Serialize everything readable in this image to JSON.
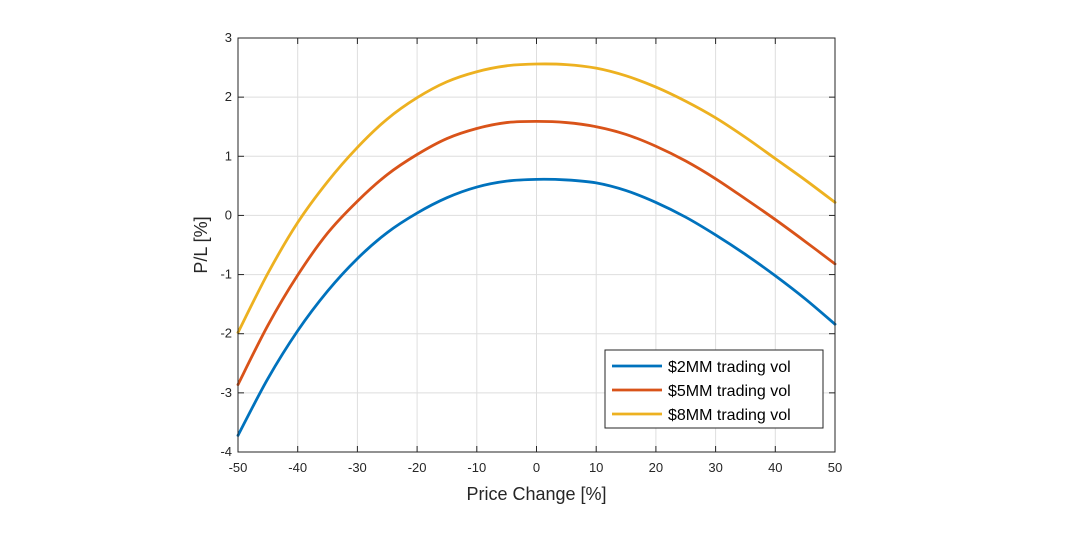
{
  "chart_data": {
    "type": "line",
    "title": "",
    "xlabel": "Price Change [%]",
    "ylabel": "P/L [%]",
    "xlim": [
      -50,
      50
    ],
    "ylim": [
      -4,
      3
    ],
    "xticks": [
      -50,
      -40,
      -30,
      -20,
      -10,
      0,
      10,
      20,
      30,
      40,
      50
    ],
    "yticks": [
      -4,
      -3,
      -2,
      -1,
      0,
      1,
      2,
      3
    ],
    "xtick_labels": [
      "-50",
      "-40",
      "-30",
      "-20",
      "-10",
      "0",
      "10",
      "20",
      "30",
      "40",
      "50"
    ],
    "ytick_labels": [
      "-4",
      "-3",
      "-2",
      "-1",
      "0",
      "1",
      "2",
      "3"
    ],
    "grid": true,
    "legend_position": "bottom-right",
    "x": [
      -50,
      -45,
      -40,
      -35,
      -30,
      -25,
      -20,
      -15,
      -10,
      -5,
      0,
      5,
      10,
      15,
      20,
      25,
      30,
      35,
      40,
      45,
      50
    ],
    "series": [
      {
        "name": "$2MM trading vol",
        "color": "#0072BD",
        "values": [
          -3.72,
          -2.76,
          -1.95,
          -1.28,
          -0.73,
          -0.29,
          0.04,
          0.3,
          0.48,
          0.58,
          0.61,
          0.6,
          0.55,
          0.42,
          0.22,
          -0.03,
          -0.33,
          -0.66,
          -1.02,
          -1.41,
          -1.84
        ]
      },
      {
        "name": "$5MM trading vol",
        "color": "#D95319",
        "values": [
          -2.86,
          -1.86,
          -1.01,
          -0.3,
          0.24,
          0.69,
          1.03,
          1.3,
          1.47,
          1.57,
          1.59,
          1.57,
          1.5,
          1.37,
          1.17,
          0.92,
          0.62,
          0.28,
          -0.07,
          -0.44,
          -0.82
        ]
      },
      {
        "name": "$8MM trading vol",
        "color": "#EDB120",
        "values": [
          -1.98,
          -0.98,
          -0.12,
          0.57,
          1.15,
          1.63,
          1.99,
          2.26,
          2.43,
          2.53,
          2.56,
          2.55,
          2.49,
          2.36,
          2.17,
          1.93,
          1.65,
          1.32,
          0.96,
          0.6,
          0.22
        ]
      }
    ]
  }
}
